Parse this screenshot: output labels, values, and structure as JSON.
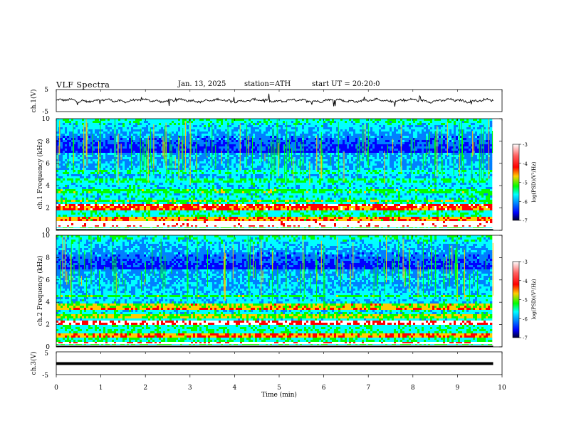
{
  "header": {
    "title": "VLF Spectra",
    "date": "Jan. 13, 2025",
    "station": "station=ATH",
    "start": "start UT =  20:20:0"
  },
  "colorbar": {
    "label": "log(PSD)(V²/Hz)",
    "ticks": [
      "-3",
      "-4",
      "-5",
      "-6",
      "-7"
    ],
    "colors": [
      "#ffffff",
      "#ff0000",
      "#ffcc00",
      "#00ff00",
      "#00ffff",
      "#0080ff",
      "#0000ff",
      "#000030"
    ]
  },
  "chart_data": [
    {
      "type": "line",
      "name": "ch1-waveform",
      "ylabel": "ch.1(V)",
      "ylim": [
        -5,
        5
      ],
      "yticks": [
        "5",
        "-5"
      ],
      "xlim": [
        0,
        10
      ],
      "mean": 0,
      "color": "#000000"
    },
    {
      "type": "heatmap",
      "name": "ch1-spectrogram",
      "ylabel": "ch.1 Frequency (kHz)",
      "ylim": [
        0,
        10
      ],
      "yticks": [
        "0",
        "2",
        "4",
        "6",
        "8",
        "10"
      ],
      "xlim": [
        0,
        9.8
      ],
      "bands_khz": [
        {
          "f": 0.3,
          "level": 0.9
        },
        {
          "f": 0.6,
          "level": 0.95
        },
        {
          "f": 1.0,
          "level": 0.7
        },
        {
          "f": 1.9,
          "level": 0.75
        },
        {
          "f": 2.2,
          "level": 0.82
        },
        {
          "f": 2.6,
          "level": 0.55
        },
        {
          "f": 3.5,
          "level": 0.5
        },
        {
          "f": 4.4,
          "level": 0.45
        },
        {
          "f": 5.2,
          "level": 0.4
        }
      ]
    },
    {
      "type": "heatmap",
      "name": "ch2-spectrogram",
      "ylabel": "ch.2 Frequency (kHz)",
      "ylim": [
        0,
        10
      ],
      "yticks": [
        "0",
        "2",
        "4",
        "6",
        "8",
        "10"
      ],
      "xlim": [
        0,
        9.8
      ],
      "bands_khz": [
        {
          "f": 0.3,
          "level": 0.9
        },
        {
          "f": 1.0,
          "level": 0.7
        },
        {
          "f": 2.0,
          "level": 0.85
        },
        {
          "f": 2.2,
          "level": 0.88
        },
        {
          "f": 2.7,
          "level": 0.6
        },
        {
          "f": 3.4,
          "level": 0.7
        },
        {
          "f": 3.6,
          "level": 0.62
        },
        {
          "f": 4.5,
          "level": 0.5
        }
      ]
    },
    {
      "type": "line",
      "name": "ch3-waveform",
      "ylabel": "ch.3(V)",
      "ylim": [
        -5,
        5
      ],
      "yticks": [
        "5",
        "-5"
      ],
      "xlim": [
        0,
        10
      ],
      "mean": 0,
      "color": "#000000"
    }
  ],
  "xaxis": {
    "label": "Time (min)",
    "ticks": [
      "0",
      "1",
      "2",
      "3",
      "4",
      "5",
      "6",
      "7",
      "8",
      "9",
      "10"
    ],
    "range": [
      0,
      10
    ]
  }
}
